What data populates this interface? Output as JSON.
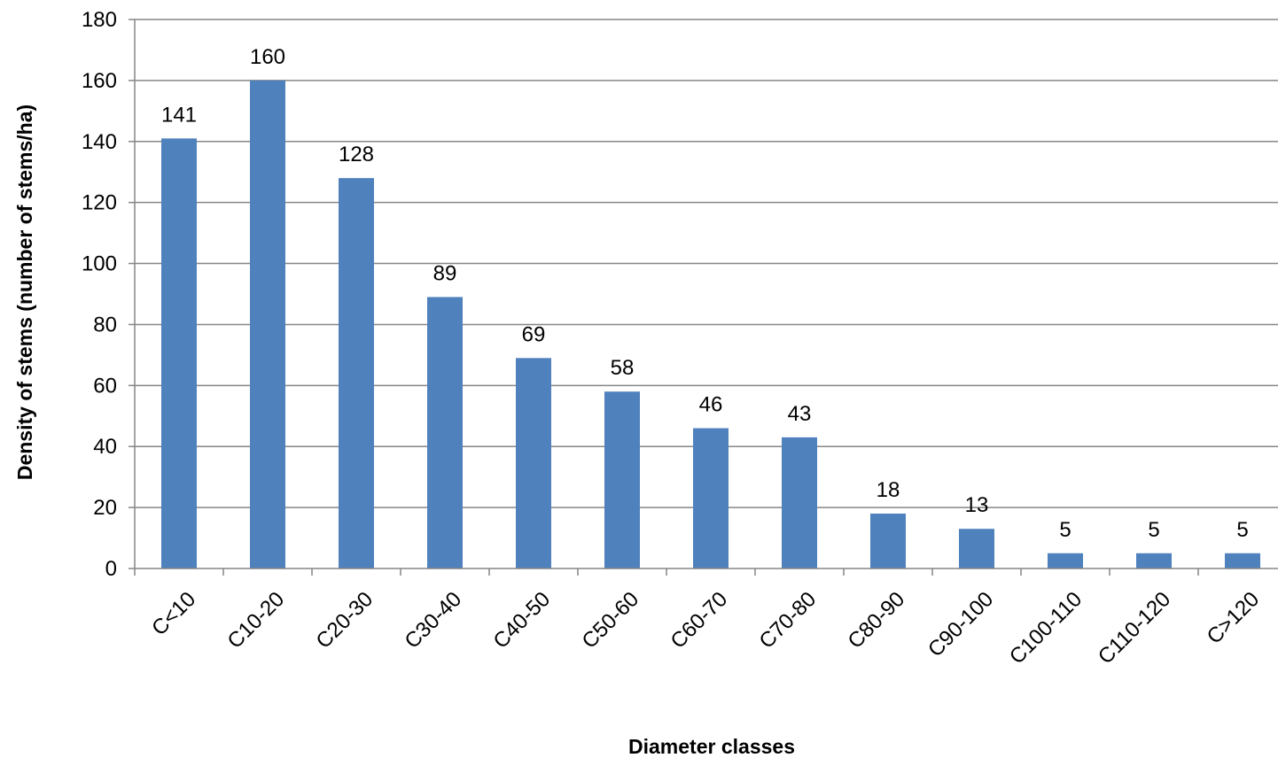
{
  "chart_data": {
    "type": "bar",
    "title": "",
    "xlabel": "Diameter classes",
    "ylabel": "Density of stems (number of stems/ha)",
    "categories": [
      "C<10",
      "C10-20",
      "C20-30",
      "C30-40",
      "C40-50",
      "C50-60",
      "C60-70",
      "C70-80",
      "C80-90",
      "C90-100",
      "C100-110",
      "C110-120",
      "C>120"
    ],
    "values": [
      141,
      160,
      128,
      89,
      69,
      58,
      46,
      43,
      18,
      13,
      5,
      5,
      5
    ],
    "data_labels": [
      "141",
      "160",
      "128",
      "89",
      "69",
      "58",
      "46",
      "43",
      "18",
      "13",
      "5",
      "5",
      "5"
    ],
    "ylim": [
      0,
      180
    ],
    "yticks": [
      0,
      20,
      40,
      60,
      80,
      100,
      120,
      140,
      160,
      180
    ],
    "grid": true,
    "legend": "none",
    "colors": {
      "bar": "#4f81bd",
      "grid": "#868686",
      "axis": "#868686"
    }
  }
}
